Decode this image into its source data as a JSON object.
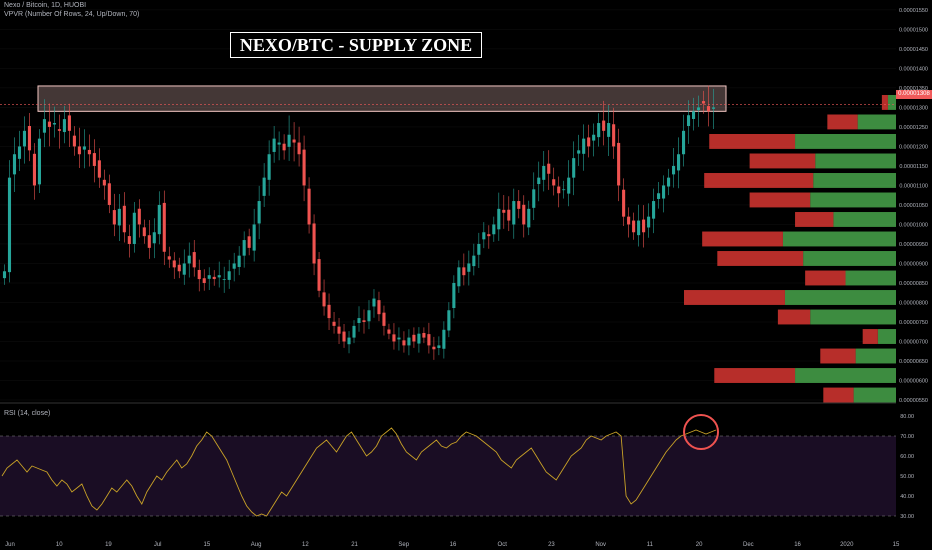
{
  "header": {
    "symbol_line": "Nexo / Bitcoin, 1D, HUOBI",
    "indicator_line": "VPVR (Number Of Rows, 24, Up/Down, 70)"
  },
  "title": "NEXO/BTC - SUPPLY ZONE",
  "current_price_label": "0.00001308",
  "rsi_label": "RSI (14, close)",
  "colors": {
    "up_candle": "#26a69a",
    "down_candle": "#ef5350",
    "zone_fill": "#f4c7c3",
    "rsi_line": "#c9a227",
    "rsi_bg": "#1a0d24",
    "vp_up": "#4caf50",
    "vp_down": "#e53935",
    "highlight_circle": "#ef5350"
  },
  "chart_data": [
    {
      "type": "candlestick",
      "title": "NEXO/BTC - SUPPLY ZONE",
      "y_axis_ticks": [
        "0.00001550",
        "0.00001500",
        "0.00001450",
        "0.00001400",
        "0.00001350",
        "0.00001300",
        "0.00001250",
        "0.00001200",
        "0.00001150",
        "0.00001100",
        "0.00001050",
        "0.00001000",
        "0.00000950",
        "0.00000900",
        "0.00000850",
        "0.00000800",
        "0.00000750",
        "0.00000700",
        "0.00000650",
        "0.00000600",
        "0.00000550"
      ],
      "ylim": [
        5.5e-06,
        1.56e-05
      ],
      "x_axis_ticks": [
        "Jun",
        "10",
        "19",
        "Jul",
        "15",
        "Aug",
        "12",
        "21",
        "Sep",
        "16",
        "Oct",
        "23",
        "Nov",
        "11",
        "20",
        "Dec",
        "16",
        "2020",
        "15"
      ],
      "supply_zone": [
        1.29e-05,
        1.355e-05
      ],
      "current_price": 1.308e-05,
      "close_series": [
        8.8e-06,
        1.12e-05,
        1.18e-05,
        1.2e-05,
        1.24e-05,
        1.19e-05,
        1.1e-05,
        1.22e-05,
        1.27e-05,
        1.25e-05,
        1.26e-05,
        1.24e-05,
        1.27e-05,
        1.24e-05,
        1.2e-05,
        1.18e-05,
        1.2e-05,
        1.18e-05,
        1.15e-05,
        1.12e-05,
        1.1e-05,
        1.05e-05,
        1e-05,
        1.04e-05,
        9.8e-06,
        9.5e-06,
        1.03e-05,
        1e-05,
        9.7e-06,
        9.4e-06,
        9.8e-06,
        1.05e-05,
        9.3e-06,
        9.1e-06,
        8.9e-06,
        8.8e-06,
        9e-06,
        9.2e-06,
        8.9e-06,
        8.6e-06,
        8.5e-06,
        8.7e-06,
        8.6e-06,
        8.7e-06,
        8.6e-06,
        8.8e-06,
        9e-06,
        9.2e-06,
        9.6e-06,
        9.4e-06,
        1e-05,
        1.06e-05,
        1.12e-05,
        1.18e-05,
        1.22e-05,
        1.21e-05,
        1.19e-05,
        1.23e-05,
        1.21e-05,
        1.18e-05,
        1.1e-05,
        1e-05,
        9e-06,
        8.3e-06,
        7.9e-06,
        7.6e-06,
        7.4e-06,
        7.2e-06,
        7e-06,
        7.1e-06,
        7.4e-06,
        7.6e-06,
        7.5e-06,
        7.8e-06,
        8.1e-06,
        7.7e-06,
        7.4e-06,
        7.2e-06,
        7e-06,
        7.1e-06,
        6.9e-06,
        7.1e-06,
        7e-06,
        7.2e-06,
        7.1e-06,
        6.9e-06,
        6.8e-06,
        6.9e-06,
        7.3e-06,
        7.8e-06,
        8.5e-06,
        8.9e-06,
        8.7e-06,
        9e-06,
        9.2e-06,
        9.5e-06,
        9.8e-06,
        9.7e-06,
        1e-05,
        1.04e-05,
        1.03e-05,
        1.01e-05,
        1.06e-05,
        1.04e-05,
        1e-05,
        1.04e-05,
        1.09e-05,
        1.12e-05,
        1.15e-05,
        1.13e-05,
        1.1e-05,
        1.08e-05,
        1.09e-05,
        1.12e-05,
        1.17e-05,
        1.19e-05,
        1.22e-05,
        1.2e-05,
        1.23e-05,
        1.26e-05,
        1.24e-05,
        1.26e-05,
        1.2e-05,
        1.1e-05,
        1.02e-05,
        1e-05,
        9.8e-06,
        1.01e-05,
        9.8e-06,
        1.02e-05,
        1.06e-05,
        1.08e-05,
        1.1e-05,
        1.12e-05,
        1.15e-05,
        1.18e-05,
        1.24e-05,
        1.28e-05,
        1.29e-05,
        1.3e-05,
        1.31e-05,
        1.29e-05,
        1.3e-05
      ]
    },
    {
      "type": "bar",
      "title": "VPVR (Number Of Rows, 24, Up/Down, 70)",
      "rows": [
        {
          "price": 1.312e-05,
          "up": 8,
          "down": 6
        },
        {
          "price": 1.262e-05,
          "up": 38,
          "down": 30
        },
        {
          "price": 1.212e-05,
          "up": 100,
          "down": 85
        },
        {
          "price": 1.162e-05,
          "up": 80,
          "down": 65
        },
        {
          "price": 1.112e-05,
          "up": 82,
          "down": 108
        },
        {
          "price": 1.062e-05,
          "up": 85,
          "down": 60
        },
        {
          "price": 1.012e-05,
          "up": 62,
          "down": 38
        },
        {
          "price": 9.62e-06,
          "up": 112,
          "down": 80
        },
        {
          "price": 9.12e-06,
          "up": 92,
          "down": 85
        },
        {
          "price": 8.62e-06,
          "up": 50,
          "down": 40
        },
        {
          "price": 8.12e-06,
          "up": 110,
          "down": 100
        },
        {
          "price": 7.62e-06,
          "up": 85,
          "down": 32
        },
        {
          "price": 7.12e-06,
          "up": 18,
          "down": 15
        },
        {
          "price": 6.62e-06,
          "up": 40,
          "down": 35
        },
        {
          "price": 6.12e-06,
          "up": 100,
          "down": 80
        },
        {
          "price": 5.62e-06,
          "up": 42,
          "down": 30
        }
      ]
    },
    {
      "type": "line",
      "title": "RSI (14, close)",
      "y_axis_ticks": [
        "80.00",
        "70.00",
        "60.00",
        "50.00",
        "40.00",
        "30.00"
      ],
      "ylim": [
        27,
        84
      ],
      "levels": [
        70,
        30
      ],
      "series": [
        {
          "values": [
            50,
            54,
            56,
            58,
            55,
            52,
            55,
            54,
            53,
            52,
            48,
            45,
            48,
            46,
            42,
            44,
            46,
            40,
            35,
            33,
            36,
            40,
            44,
            42,
            45,
            48,
            45,
            40,
            36,
            42,
            46,
            50,
            48,
            52,
            55,
            58,
            54,
            56,
            60,
            65,
            68,
            72,
            70,
            66,
            62,
            58,
            52,
            46,
            40,
            35,
            32,
            30,
            31,
            30,
            34,
            38,
            42,
            40,
            44,
            48,
            52,
            56,
            60,
            64,
            66,
            68,
            65,
            62,
            66,
            70,
            72,
            68,
            64,
            60,
            62,
            65,
            70,
            72,
            74,
            71,
            66,
            62,
            60,
            58,
            62,
            64,
            66,
            68,
            65,
            64,
            66,
            67,
            70,
            72,
            71,
            70,
            68,
            66,
            64,
            62,
            58,
            56,
            54,
            58,
            60,
            62,
            64,
            60,
            56,
            52,
            50,
            48,
            52,
            56,
            60,
            62,
            64,
            68,
            70,
            69,
            68,
            70,
            71,
            72,
            70,
            40,
            36,
            38,
            42,
            46,
            50,
            54,
            58,
            62,
            65,
            68,
            70,
            71,
            72,
            73,
            72,
            71,
            72,
            73
          ]
        }
      ]
    }
  ]
}
